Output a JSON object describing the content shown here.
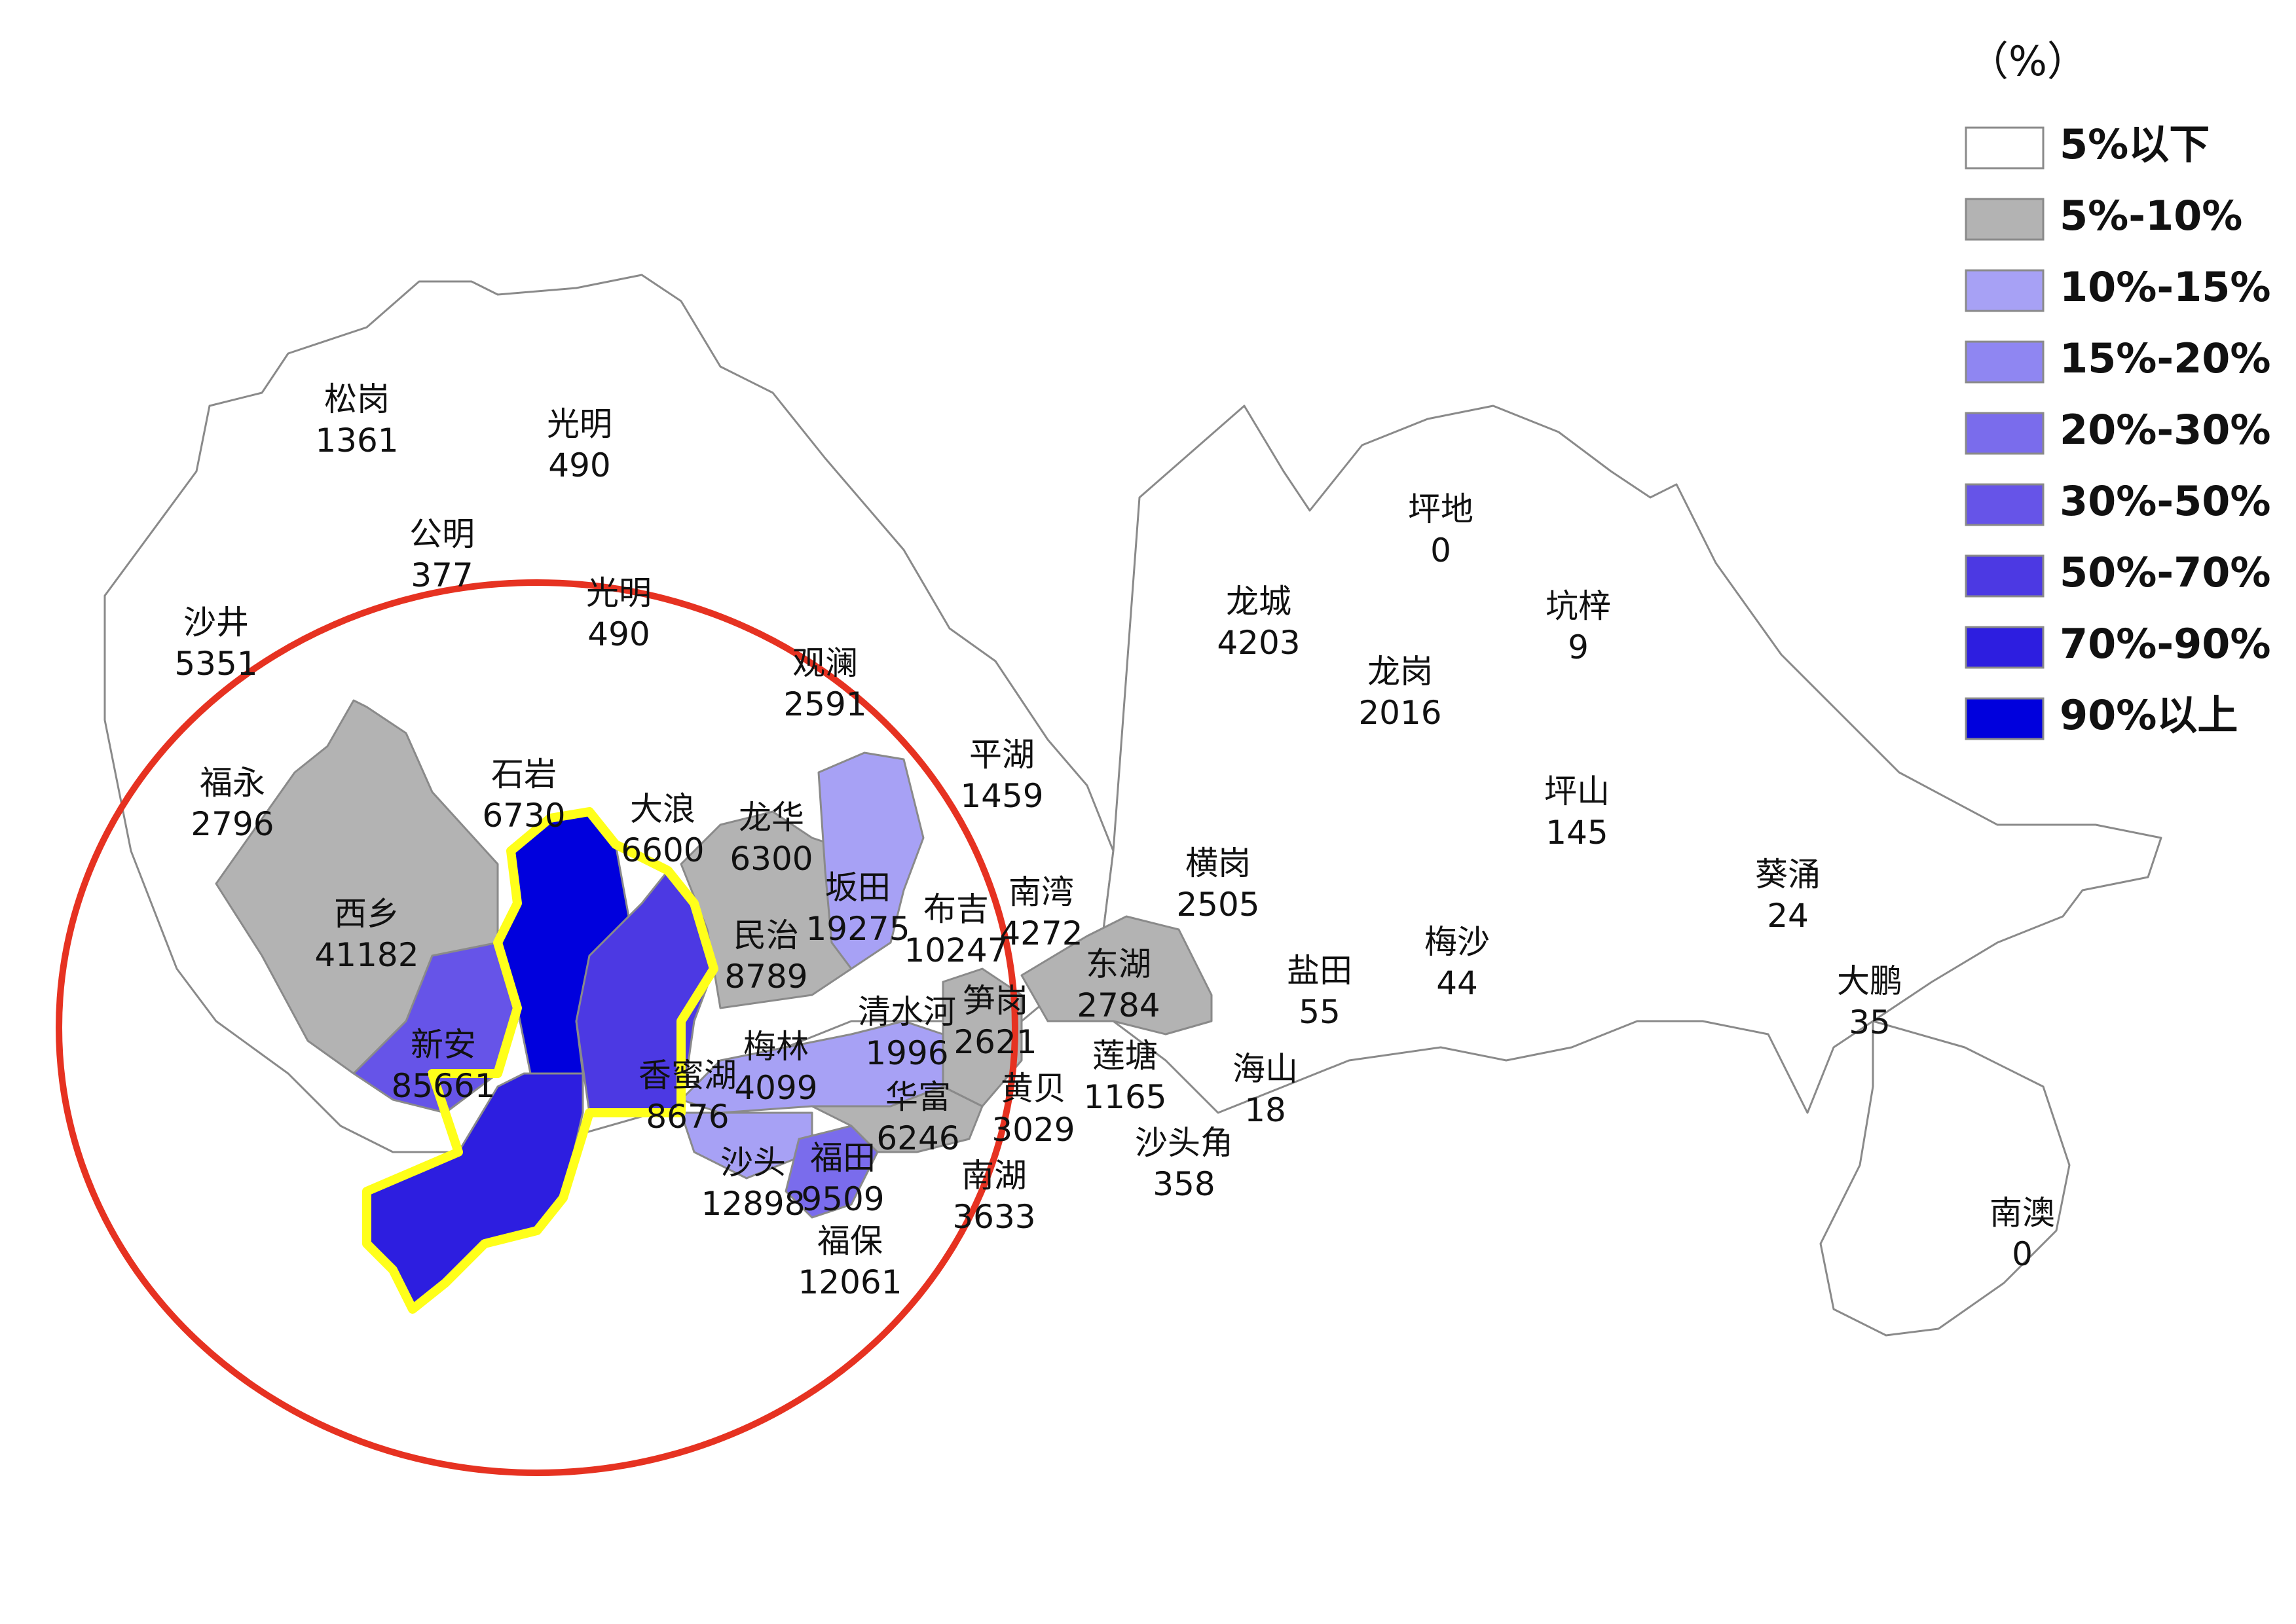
{
  "colors": {
    "below5": "#ffffff",
    "5to10": "#b3b3b3",
    "10to15": "#a7a1f5",
    "15to20": "#8f86f2",
    "20to30": "#7a6cec",
    "30to50": "#6654e8",
    "50to70": "#4c39e3",
    "70to90": "#2d1ee0",
    "above90": "#0000dd",
    "circle": "#e63221",
    "highlight": "#ffff1a",
    "outline": "#8a8a8a"
  },
  "legend": {
    "unit": "（%）",
    "items": [
      {
        "label": "5%以下",
        "key": "below5"
      },
      {
        "label": "5%-10%",
        "key": "5to10"
      },
      {
        "label": "10%-15%",
        "key": "10to15"
      },
      {
        "label": "15%-20%",
        "key": "15to20"
      },
      {
        "label": "20%-30%",
        "key": "20to30"
      },
      {
        "label": "30%-50%",
        "key": "30to50"
      },
      {
        "label": "50%-70%",
        "key": "50to70"
      },
      {
        "label": "70%-90%",
        "key": "70to90"
      },
      {
        "label": "90%以上",
        "key": "above90"
      }
    ]
  },
  "map": {
    "regions": [
      {
        "name": "松岗",
        "value": "1361",
        "key": "below5"
      },
      {
        "name": "光明",
        "value": "490",
        "key": "below5"
      },
      {
        "name": "公明",
        "value": "377",
        "key": "below5"
      },
      {
        "name": "光明",
        "value": "490",
        "key": "below5"
      },
      {
        "name": "沙井",
        "value": "5351",
        "key": "below5"
      },
      {
        "name": "观澜",
        "value": "2591",
        "key": "below5"
      },
      {
        "name": "福永",
        "value": "2796",
        "key": "5to10"
      },
      {
        "name": "石岩",
        "value": "6730",
        "key": "below5"
      },
      {
        "name": "大浪",
        "value": "6600",
        "key": "5to10"
      },
      {
        "name": "龙华",
        "value": "6300",
        "key": "5to10"
      },
      {
        "name": "坂田",
        "value": "19275",
        "key": "10to15"
      },
      {
        "name": "民治",
        "value": "8789",
        "key": "5to10"
      },
      {
        "name": "西乡",
        "value": "41182",
        "key": "5to10"
      },
      {
        "name": "新安",
        "value": "85661",
        "key": "30to50"
      },
      {
        "name": "香蜜湖",
        "value": "8676",
        "key": "50to70"
      },
      {
        "name": "梅林",
        "value": "4099",
        "key": "10to15"
      },
      {
        "name": "沙头",
        "value": "12898",
        "key": "10to15"
      },
      {
        "name": "福田",
        "value": "9509",
        "key": "20to30"
      },
      {
        "name": "福保",
        "value": "12061",
        "key": "below5"
      },
      {
        "name": "平湖",
        "value": "1459",
        "key": "below5"
      },
      {
        "name": "布吉",
        "value": "10247",
        "key": "below5"
      },
      {
        "name": "南湾",
        "value": "4272",
        "key": "below5"
      },
      {
        "name": "清水河",
        "value": "1996",
        "key": "10to15"
      },
      {
        "name": "笋岗",
        "value": "2621",
        "key": "5to10"
      },
      {
        "name": "华富",
        "value": "6246",
        "key": "5to10"
      },
      {
        "name": "黄贝",
        "value": "3029",
        "key": "below5"
      },
      {
        "name": "南湖",
        "value": "3633",
        "key": "below5"
      },
      {
        "name": "东湖",
        "value": "2784",
        "key": "5to10"
      },
      {
        "name": "莲塘",
        "value": "1165",
        "key": "below5"
      },
      {
        "name": "沙头角",
        "value": "358",
        "key": "below5"
      },
      {
        "name": "海山",
        "value": "18",
        "key": "below5"
      },
      {
        "name": "横岗",
        "value": "2505",
        "key": "below5"
      },
      {
        "name": "盐田",
        "value": "55",
        "key": "below5"
      },
      {
        "name": "梅沙",
        "value": "44",
        "key": "below5"
      },
      {
        "name": "龙城",
        "value": "4203",
        "key": "below5"
      },
      {
        "name": "坪地",
        "value": "0",
        "key": "below5"
      },
      {
        "name": "坑梓",
        "value": "9",
        "key": "below5"
      },
      {
        "name": "龙岗",
        "value": "2016",
        "key": "below5"
      },
      {
        "name": "坪山",
        "value": "145",
        "key": "below5"
      },
      {
        "name": "葵涌",
        "value": "24",
        "key": "below5"
      },
      {
        "name": "大鹏",
        "value": "35",
        "key": "below5"
      },
      {
        "name": "南澳",
        "value": "0",
        "key": "below5"
      }
    ]
  }
}
